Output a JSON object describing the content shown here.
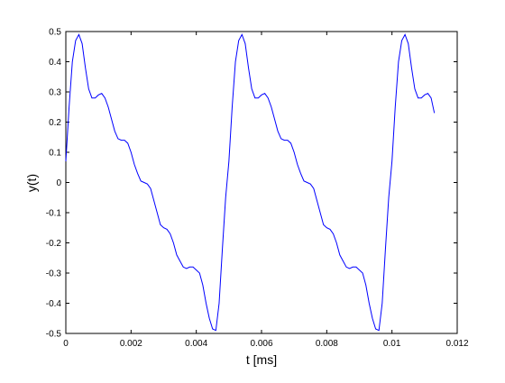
{
  "chart_data": {
    "type": "line",
    "xlabel": "t [ms]",
    "ylabel": "y(t)",
    "x": [
      0,
      0.0001,
      0.0002,
      0.0003,
      0.0004,
      0.0005,
      0.0006,
      0.0007,
      0.0008,
      0.0009,
      0.001,
      0.0011,
      0.0012,
      0.0013,
      0.0014,
      0.0015,
      0.0016,
      0.0017,
      0.0018,
      0.0019,
      0.002,
      0.0021,
      0.0022,
      0.0023,
      0.0024,
      0.0025,
      0.0026,
      0.0027,
      0.0028,
      0.0029,
      0.003,
      0.0031,
      0.0032,
      0.0033,
      0.0034,
      0.0035,
      0.0036,
      0.0037,
      0.0038,
      0.0039,
      0.004,
      0.0041,
      0.0042,
      0.0043,
      0.0044,
      0.0045,
      0.0046,
      0.0047,
      0.0048,
      0.0049,
      0.005,
      0.0051,
      0.0052,
      0.0053,
      0.0054,
      0.0055,
      0.0056,
      0.0057,
      0.0058,
      0.0059,
      0.006,
      0.0061,
      0.0062,
      0.0063,
      0.0064,
      0.0065,
      0.0066,
      0.0067,
      0.0068,
      0.0069,
      0.007,
      0.0071,
      0.0072,
      0.0073,
      0.0074,
      0.0075,
      0.0076,
      0.0077,
      0.0078,
      0.0079,
      0.008,
      0.0081,
      0.0082,
      0.0083,
      0.0084,
      0.0085,
      0.0086,
      0.0087,
      0.0088,
      0.0089,
      0.009,
      0.0091,
      0.0092,
      0.0093,
      0.0094,
      0.0095,
      0.0096,
      0.0097,
      0.0098,
      0.0099,
      0.01,
      0.0101,
      0.0102,
      0.0103,
      0.0104,
      0.0105,
      0.0106,
      0.0107,
      0.0108,
      0.0109,
      0.011,
      0.0111,
      0.0112,
      0.0113
    ],
    "series": [
      {
        "color": "#0000ff",
        "values": [
          0.07,
          0.25,
          0.4,
          0.47,
          0.49,
          0.46,
          0.38,
          0.31,
          0.28,
          0.28,
          0.29,
          0.295,
          0.28,
          0.25,
          0.21,
          0.17,
          0.145,
          0.14,
          0.14,
          0.13,
          0.1,
          0.06,
          0.03,
          0.005,
          0,
          -0.005,
          -0.02,
          -0.06,
          -0.1,
          -0.14,
          -0.15,
          -0.155,
          -0.17,
          -0.2,
          -0.24,
          -0.26,
          -0.28,
          -0.285,
          -0.28,
          -0.28,
          -0.29,
          -0.3,
          -0.34,
          -0.4,
          -0.45,
          -0.485,
          -0.49,
          -0.4,
          -0.22,
          -0.05,
          0.07,
          0.25,
          0.4,
          0.47,
          0.49,
          0.46,
          0.38,
          0.31,
          0.28,
          0.28,
          0.29,
          0.295,
          0.28,
          0.25,
          0.21,
          0.17,
          0.145,
          0.14,
          0.14,
          0.13,
          0.1,
          0.06,
          0.03,
          0.005,
          0,
          -0.005,
          -0.02,
          -0.06,
          -0.1,
          -0.14,
          -0.15,
          -0.155,
          -0.17,
          -0.2,
          -0.24,
          -0.26,
          -0.28,
          -0.285,
          -0.28,
          -0.28,
          -0.29,
          -0.3,
          -0.34,
          -0.4,
          -0.45,
          -0.485,
          -0.49,
          -0.4,
          -0.22,
          -0.05,
          0.07,
          0.25,
          0.4,
          0.47,
          0.49,
          0.46,
          0.38,
          0.31,
          0.28,
          0.28,
          0.29,
          0.295,
          0.28,
          0.23
        ]
      }
    ],
    "xlim": [
      0,
      0.012
    ],
    "xticks": [
      0,
      0.002,
      0.004,
      0.006,
      0.008,
      0.01,
      0.012
    ],
    "ylim": [
      -0.5,
      0.5
    ],
    "yticks": [
      -0.5,
      -0.4,
      -0.3,
      -0.2,
      -0.1,
      0,
      0.1,
      0.2,
      0.3,
      0.4,
      0.5
    ]
  }
}
